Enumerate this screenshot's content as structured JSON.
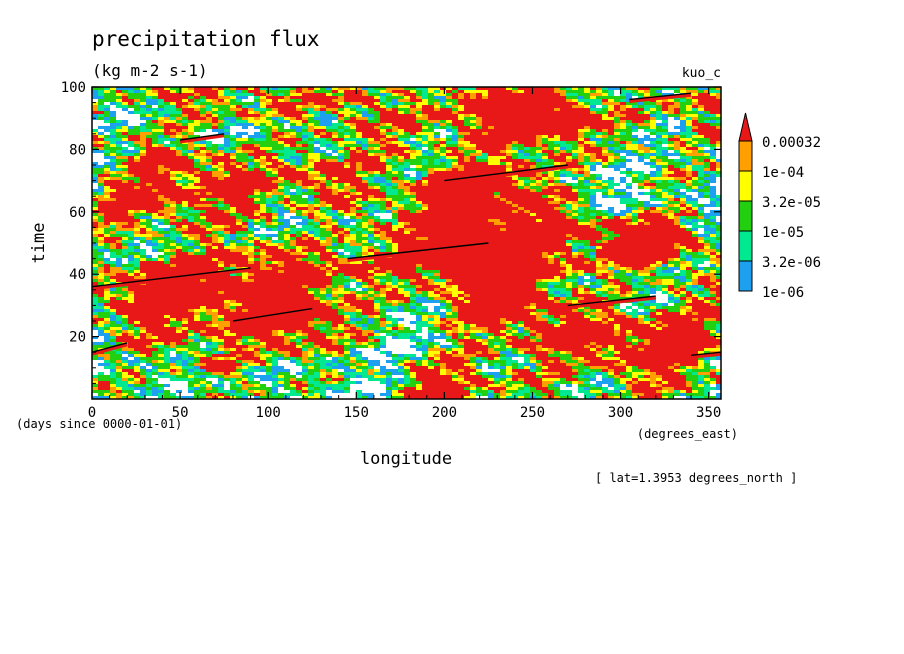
{
  "chart_data": {
    "type": "heatmap",
    "title": "precipitation flux",
    "subtitle": "(kg m-2 s-1)",
    "run_label": "kuo_c",
    "xlabel": "longitude",
    "ylabel": "time",
    "x_units": "(degrees_east)",
    "y_units": "(days since 0000-01-01)",
    "footnote": "[ lat=1.3953 degrees_north ]",
    "xlim": [
      0,
      357
    ],
    "ylim": [
      0,
      100
    ],
    "x_ticks": [
      0,
      50,
      100,
      150,
      200,
      250,
      300,
      350
    ],
    "y_ticks": [
      20,
      40,
      60,
      80,
      100
    ],
    "grid": false,
    "legend_placement": "right",
    "colorbar": {
      "levels": [
        "1e-06",
        "3.2e-06",
        "1e-05",
        "3.2e-05",
        "1e-04",
        "0.00032"
      ],
      "colors": [
        "#1ea0f0",
        "#00e890",
        "#22d010",
        "#ffff00",
        "#ffa000",
        "#e81818"
      ],
      "extend": "max"
    },
    "streaks": [
      {
        "x": [
          0,
          20
        ],
        "y": [
          15,
          18
        ]
      },
      {
        "x": [
          50,
          75
        ],
        "y": [
          83,
          85
        ]
      },
      {
        "x": [
          0,
          90
        ],
        "y": [
          36,
          42
        ]
      },
      {
        "x": [
          80,
          125
        ],
        "y": [
          25,
          29
        ]
      },
      {
        "x": [
          145,
          225
        ],
        "y": [
          45,
          50
        ]
      },
      {
        "x": [
          200,
          270
        ],
        "y": [
          70,
          75
        ]
      },
      {
        "x": [
          270,
          320
        ],
        "y": [
          30,
          33
        ]
      },
      {
        "x": [
          305,
          340
        ],
        "y": [
          96,
          98
        ]
      },
      {
        "x": [
          340,
          357
        ],
        "y": [
          14,
          15
        ]
      }
    ]
  }
}
